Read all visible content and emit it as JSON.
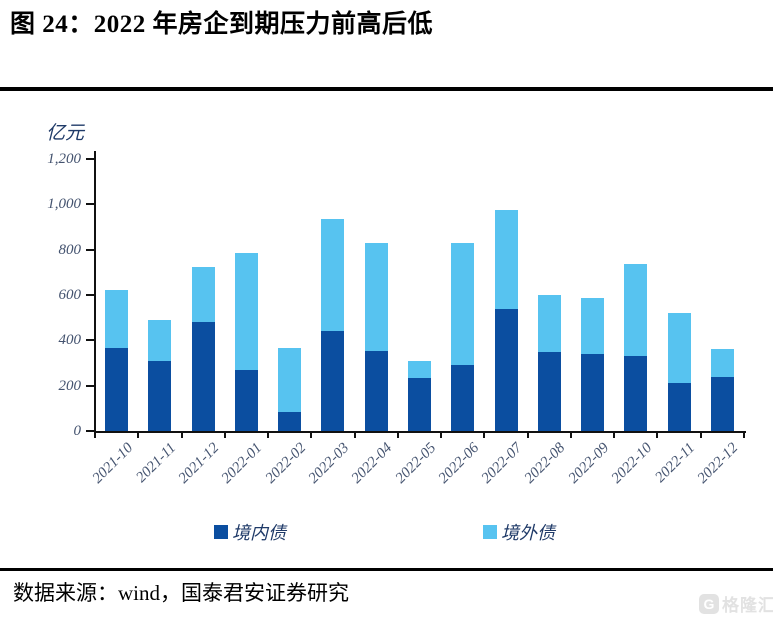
{
  "header": {
    "title": "图 24：2022 年房企到期压力前高后低"
  },
  "chart_data": {
    "type": "bar",
    "stacked": true,
    "title": "图 24：2022 年房企到期压力前高后低",
    "unit_label": "亿元",
    "xlabel": "",
    "ylabel": "亿元",
    "ylim": [
      0,
      1200
    ],
    "grid": false,
    "legend_position": "bottom",
    "categories": [
      "2021-10",
      "2021-11",
      "2021-12",
      "2022-01",
      "2022-02",
      "2022-03",
      "2022-04",
      "2022-05",
      "2022-06",
      "2022-07",
      "2022-08",
      "2022-09",
      "2022-10",
      "2022-11",
      "2022-12"
    ],
    "series": [
      {
        "name": "境内债",
        "color": "#0B4EA0",
        "values": [
          365,
          310,
          480,
          270,
          85,
          440,
          355,
          235,
          290,
          540,
          350,
          340,
          330,
          210,
          240
        ]
      },
      {
        "name": "境外债",
        "color": "#57C3F0",
        "values": [
          255,
          180,
          245,
          515,
          280,
          495,
          475,
          75,
          540,
          435,
          250,
          245,
          405,
          310,
          120
        ]
      }
    ],
    "y_ticks": [
      {
        "v": 0,
        "label": "0"
      },
      {
        "v": 200,
        "label": "200"
      },
      {
        "v": 400,
        "label": "400"
      },
      {
        "v": 600,
        "label": "600"
      },
      {
        "v": 800,
        "label": "800"
      },
      {
        "v": 1000,
        "label": "1,000"
      },
      {
        "v": 1200,
        "label": "1,200"
      }
    ]
  },
  "footer": {
    "source": "数据来源：wind，国泰君安证券研究"
  },
  "watermark": {
    "logo": "G",
    "text": "格隆汇"
  }
}
